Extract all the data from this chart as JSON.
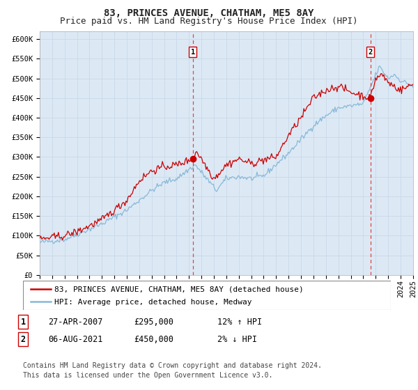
{
  "title": "83, PRINCES AVENUE, CHATHAM, ME5 8AY",
  "subtitle": "Price paid vs. HM Land Registry's House Price Index (HPI)",
  "ylim": [
    0,
    620000
  ],
  "yticks": [
    0,
    50000,
    100000,
    150000,
    200000,
    250000,
    300000,
    350000,
    400000,
    450000,
    500000,
    550000,
    600000
  ],
  "ytick_labels": [
    "£0",
    "£50K",
    "£100K",
    "£150K",
    "£200K",
    "£250K",
    "£300K",
    "£350K",
    "£400K",
    "£450K",
    "£500K",
    "£550K",
    "£600K"
  ],
  "x_start_year": 1995,
  "x_end_year": 2025,
  "background_color": "#dce9f5",
  "grid_color": "#c8d8e8",
  "fig_bg": "#ffffff",
  "red_line_color": "#cc0000",
  "blue_line_color": "#88b8d8",
  "marker_color": "#cc0000",
  "dashed_line_color": "#dd4444",
  "annotation_box_color": "#ffffff",
  "annotation_box_edge": "#cc0000",
  "legend_entry1": "83, PRINCES AVENUE, CHATHAM, ME5 8AY (detached house)",
  "legend_entry2": "HPI: Average price, detached house, Medway",
  "sale1_label": "1",
  "sale1_year": 2007.3,
  "sale1_value": 295000,
  "sale2_label": "2",
  "sale2_year": 2021.58,
  "sale2_value": 450000,
  "table_row1": [
    "1",
    "27-APR-2007",
    "£295,000",
    "12% ↑ HPI"
  ],
  "table_row2": [
    "2",
    "06-AUG-2021",
    "£450,000",
    "2% ↓ HPI"
  ],
  "footer": "Contains HM Land Registry data © Crown copyright and database right 2024.\nThis data is licensed under the Open Government Licence v3.0.",
  "title_fontsize": 10,
  "subtitle_fontsize": 9,
  "tick_fontsize": 7.5,
  "legend_fontsize": 8,
  "table_fontsize": 8.5,
  "footer_fontsize": 7
}
